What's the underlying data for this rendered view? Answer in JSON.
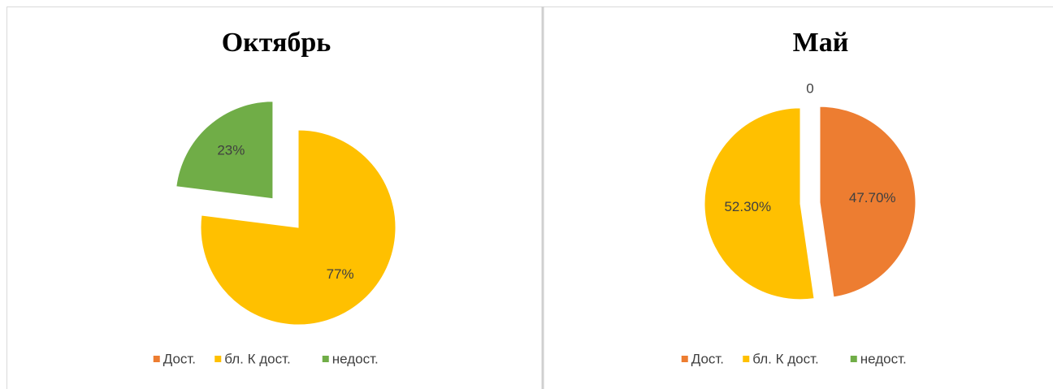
{
  "chart_data": [
    {
      "type": "pie",
      "title": "Октябрь",
      "categories": [
        "Дост.",
        "бл. К дост.",
        "недост."
      ],
      "values": [
        0,
        77,
        23
      ],
      "value_labels": [
        null,
        "77%",
        "23%"
      ],
      "colors": [
        "#ED7D31",
        "#FFC000",
        "#70AD47"
      ],
      "legend": "bottom"
    },
    {
      "type": "pie",
      "title": "Май",
      "categories": [
        "Дост.",
        "бл. К дост.",
        "недост."
      ],
      "values": [
        47.7,
        52.3,
        0
      ],
      "value_labels": [
        "47.70%",
        "52.30%",
        "0"
      ],
      "colors": [
        "#ED7D31",
        "#FFC000",
        "#70AD47"
      ],
      "legend": "bottom"
    }
  ]
}
